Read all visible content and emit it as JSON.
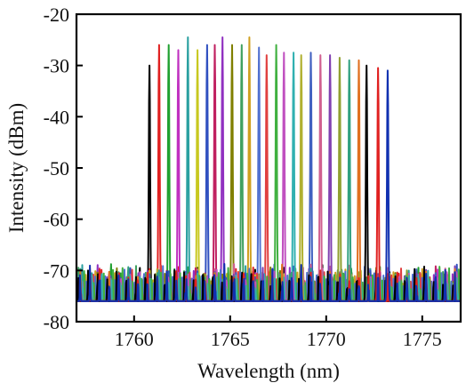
{
  "chart_data": {
    "type": "line",
    "title": "",
    "xlabel": "Wavelength (nm)",
    "ylabel": "Intensity (dBm)",
    "xlim": [
      1757,
      1777
    ],
    "ylim": [
      -80,
      -20
    ],
    "x_ticks": [
      1760,
      1765,
      1770,
      1775
    ],
    "y_ticks": [
      -20,
      -30,
      -40,
      -50,
      -60,
      -70,
      -80
    ],
    "grid": false,
    "legend": "none",
    "noise_floor_dBm": -76,
    "series": [
      {
        "peak_nm": 1760.8,
        "peak_dBm": -30,
        "color": "#000000"
      },
      {
        "peak_nm": 1761.3,
        "peak_dBm": -26,
        "color": "#e02020"
      },
      {
        "peak_nm": 1761.8,
        "peak_dBm": -26,
        "color": "#20a030"
      },
      {
        "peak_nm": 1762.3,
        "peak_dBm": -27,
        "color": "#c030c0"
      },
      {
        "peak_nm": 1762.8,
        "peak_dBm": -24.5,
        "color": "#2aa0a0"
      },
      {
        "peak_nm": 1763.3,
        "peak_dBm": -27,
        "color": "#c8c820"
      },
      {
        "peak_nm": 1763.8,
        "peak_dBm": -26,
        "color": "#3050c0"
      },
      {
        "peak_nm": 1764.2,
        "peak_dBm": -26,
        "color": "#c02060"
      },
      {
        "peak_nm": 1764.6,
        "peak_dBm": -24.5,
        "color": "#9030c0"
      },
      {
        "peak_nm": 1765.1,
        "peak_dBm": -26,
        "color": "#808000"
      },
      {
        "peak_nm": 1765.6,
        "peak_dBm": -26,
        "color": "#40a060"
      },
      {
        "peak_nm": 1766.0,
        "peak_dBm": -24.5,
        "color": "#d0a020"
      },
      {
        "peak_nm": 1766.5,
        "peak_dBm": -26.5,
        "color": "#5070d0"
      },
      {
        "peak_nm": 1766.9,
        "peak_dBm": -28,
        "color": "#e04040"
      },
      {
        "peak_nm": 1767.4,
        "peak_dBm": -26,
        "color": "#40b040"
      },
      {
        "peak_nm": 1767.8,
        "peak_dBm": -27.5,
        "color": "#c050c0"
      },
      {
        "peak_nm": 1768.3,
        "peak_dBm": -27.5,
        "color": "#30b0b0"
      },
      {
        "peak_nm": 1768.7,
        "peak_dBm": -28,
        "color": "#b0b030"
      },
      {
        "peak_nm": 1769.2,
        "peak_dBm": -27.5,
        "color": "#4060c0"
      },
      {
        "peak_nm": 1769.7,
        "peak_dBm": -28,
        "color": "#d06090"
      },
      {
        "peak_nm": 1770.2,
        "peak_dBm": -28,
        "color": "#8040b0"
      },
      {
        "peak_nm": 1770.7,
        "peak_dBm": -28.5,
        "color": "#90a030"
      },
      {
        "peak_nm": 1771.2,
        "peak_dBm": -29,
        "color": "#30a080"
      },
      {
        "peak_nm": 1771.7,
        "peak_dBm": -29,
        "color": "#e07020"
      },
      {
        "peak_nm": 1772.1,
        "peak_dBm": -30,
        "color": "#000000"
      },
      {
        "peak_nm": 1772.7,
        "peak_dBm": -30.5,
        "color": "#e02020"
      },
      {
        "peak_nm": 1773.2,
        "peak_dBm": -31,
        "color": "#1030b0"
      }
    ]
  }
}
